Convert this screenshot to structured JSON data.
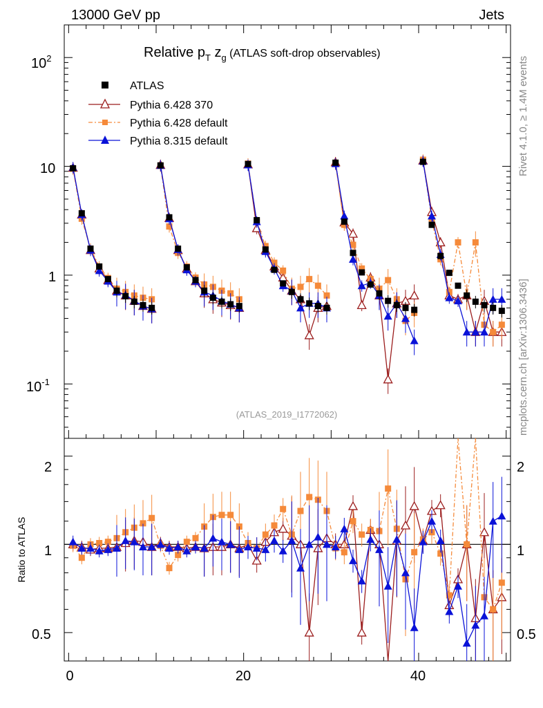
{
  "header": {
    "beam": "13000 GeV pp",
    "process": "Jets",
    "side_right": "Rivet 4.1.0, ≥ 1.4M events",
    "side_source": "mcplots.cern.ch [arXiv:1306.3436]"
  },
  "chart_data": {
    "type": "line",
    "title_main": "Relative p",
    "title_sub_T": "T",
    "title_z": " z",
    "title_sub_g": "g",
    "title_rest": " (ATLAS soft-drop observables)",
    "analysis_label": "(ATLAS_2019_I1772062)",
    "ylabel_ratio": "Ratio to ATLAS",
    "xlim": [
      -0.5,
      50.5
    ],
    "main_ylim_log10": [
      -1.5,
      2.3
    ],
    "ratio_ylim": [
      0.4,
      2.3
    ],
    "x_ticks": [
      "0",
      "20",
      "40"
    ],
    "main_y_ticks": [
      "10",
      "10",
      "1",
      "10"
    ],
    "main_y_exp": [
      "-1",
      "",
      "",
      "2"
    ],
    "ratio_y_ticks": [
      "0.5",
      "1",
      "2"
    ],
    "x": [
      0.5,
      1.5,
      2.5,
      3.5,
      4.5,
      5.5,
      6.5,
      7.5,
      8.5,
      9.5,
      10.5,
      11.5,
      12.5,
      13.5,
      14.5,
      15.5,
      16.5,
      17.5,
      18.5,
      19.5,
      20.5,
      21.5,
      22.5,
      23.5,
      24.5,
      25.5,
      26.5,
      27.5,
      28.5,
      29.5,
      30.5,
      31.5,
      32.5,
      33.5,
      34.5,
      35.5,
      36.5,
      37.5,
      38.5,
      39.5,
      40.5,
      41.5,
      42.5,
      43.5,
      44.5,
      45.5,
      46.5,
      47.5,
      48.5,
      49.5
    ],
    "series": [
      {
        "name": "ATLAS",
        "color": "#000000",
        "marker": "square",
        "values": [
          9.6,
          3.7,
          1.75,
          1.2,
          0.92,
          0.72,
          0.64,
          0.57,
          0.53,
          0.5,
          10.2,
          3.4,
          1.75,
          1.18,
          0.9,
          0.72,
          0.62,
          0.57,
          0.54,
          0.52,
          10.5,
          3.2,
          1.72,
          1.12,
          0.84,
          0.7,
          0.6,
          0.55,
          0.52,
          0.5,
          10.8,
          3.1,
          1.6,
          1.06,
          0.82,
          0.68,
          0.58,
          0.53,
          0.5,
          0.48,
          11.0,
          2.9,
          1.5,
          1.05,
          0.8,
          0.65,
          0.57,
          0.53,
          0.5,
          0.47
        ]
      },
      {
        "name": "Pythia 6.428 370",
        "color": "#9b1c1c",
        "marker": "triangle-open",
        "values": [
          9.7,
          3.6,
          1.7,
          1.15,
          0.9,
          0.72,
          0.65,
          0.58,
          0.52,
          0.49,
          10.3,
          3.35,
          1.7,
          1.15,
          0.88,
          0.68,
          0.6,
          0.56,
          0.53,
          0.5,
          10.4,
          2.7,
          1.7,
          1.2,
          0.95,
          0.72,
          0.6,
          0.28,
          0.5,
          0.52,
          10.9,
          3.05,
          2.4,
          0.53,
          0.95,
          0.65,
          0.11,
          0.55,
          0.58,
          0.65,
          11.3,
          3.8,
          2.0,
          0.65,
          0.6,
          0.65,
          0.3,
          0.58,
          0.3,
          0.3
        ]
      },
      {
        "name": "Pythia 6.428 default",
        "color": "#f58a3a",
        "marker": "square",
        "values": [
          9.5,
          3.3,
          1.75,
          1.2,
          0.94,
          0.75,
          0.7,
          0.65,
          0.62,
          0.6,
          10.1,
          2.8,
          1.6,
          1.2,
          0.95,
          0.82,
          0.78,
          0.72,
          0.68,
          0.6,
          10.6,
          3.1,
          1.85,
          1.3,
          1.1,
          0.75,
          0.78,
          0.92,
          0.8,
          0.65,
          10.5,
          2.9,
          1.9,
          1.15,
          0.92,
          0.75,
          0.9,
          0.6,
          0.38,
          0.45,
          11.5,
          3.2,
          1.4,
          0.7,
          2.0,
          0.65,
          2.0,
          0.35,
          0.3,
          0.35
        ]
      },
      {
        "name": "Pythia 8.315 default",
        "color": "#0a12d8",
        "marker": "triangle",
        "values": [
          9.8,
          3.6,
          1.7,
          1.1,
          0.88,
          0.7,
          0.66,
          0.58,
          0.52,
          0.49,
          10.2,
          3.3,
          1.72,
          1.12,
          0.88,
          0.7,
          0.65,
          0.58,
          0.54,
          0.5,
          10.3,
          3.1,
          1.65,
          1.15,
          0.8,
          0.72,
          0.5,
          0.55,
          0.55,
          0.5,
          10.6,
          3.5,
          1.4,
          0.8,
          0.85,
          0.65,
          0.42,
          0.55,
          0.4,
          0.25,
          11.2,
          3.5,
          1.55,
          0.62,
          0.58,
          0.3,
          0.3,
          0.3,
          0.6,
          0.6
        ]
      }
    ],
    "ratio_series": [
      {
        "name": "Pythia 6.428 370",
        "values": [
          1.0,
          0.98,
          0.96,
          0.97,
          0.97,
          0.98,
          1.01,
          1.03,
          1.02,
          0.98,
          1.01,
          0.98,
          0.98,
          0.97,
          0.98,
          0.97,
          0.98,
          0.98,
          1.0,
          0.97,
          1.0,
          0.88,
          1.02,
          1.1,
          1.13,
          1.07,
          1.0,
          0.5,
          0.97,
          1.05,
          1.0,
          1.0,
          1.35,
          0.5,
          1.12,
          1.0,
          0.19,
          1.03,
          1.16,
          1.35,
          1.03,
          1.3,
          1.36,
          0.62,
          0.76,
          1.0,
          0.56,
          1.1,
          0.6,
          0.66
        ]
      },
      {
        "name": "Pythia 6.428 default",
        "values": [
          0.99,
          0.9,
          1.0,
          1.01,
          1.02,
          1.05,
          1.1,
          1.14,
          1.18,
          1.23,
          0.99,
          0.83,
          0.92,
          1.02,
          1.05,
          1.15,
          1.24,
          1.26,
          1.26,
          1.15,
          1.01,
          0.97,
          1.08,
          1.16,
          1.32,
          1.08,
          1.3,
          1.45,
          1.42,
          1.3,
          0.97,
          0.94,
          1.2,
          1.08,
          1.12,
          1.11,
          1.55,
          1.13,
          0.76,
          0.94,
          1.04,
          1.1,
          0.93,
          0.67,
          2.5,
          1.0,
          3.5,
          0.66,
          0.6,
          0.74
        ]
      },
      {
        "name": "Pythia 8.315 default",
        "values": [
          1.02,
          0.97,
          0.97,
          0.95,
          0.96,
          0.97,
          1.03,
          1.02,
          0.98,
          0.98,
          1.0,
          0.97,
          0.98,
          0.95,
          0.98,
          0.97,
          1.05,
          1.02,
          1.0,
          0.96,
          0.98,
          0.97,
          0.96,
          1.03,
          0.95,
          1.03,
          0.83,
          1.0,
          1.06,
          1.0,
          0.98,
          1.13,
          0.88,
          0.75,
          1.04,
          0.96,
          0.72,
          1.04,
          0.8,
          0.52,
          1.02,
          1.2,
          1.03,
          0.59,
          0.72,
          0.46,
          0.53,
          0.57,
          1.2,
          1.25
        ]
      }
    ]
  },
  "legend": [
    {
      "label": "ATLAS"
    },
    {
      "label": "Pythia 6.428 370"
    },
    {
      "label": "Pythia 6.428 default"
    },
    {
      "label": "Pythia 8.315 default"
    }
  ]
}
